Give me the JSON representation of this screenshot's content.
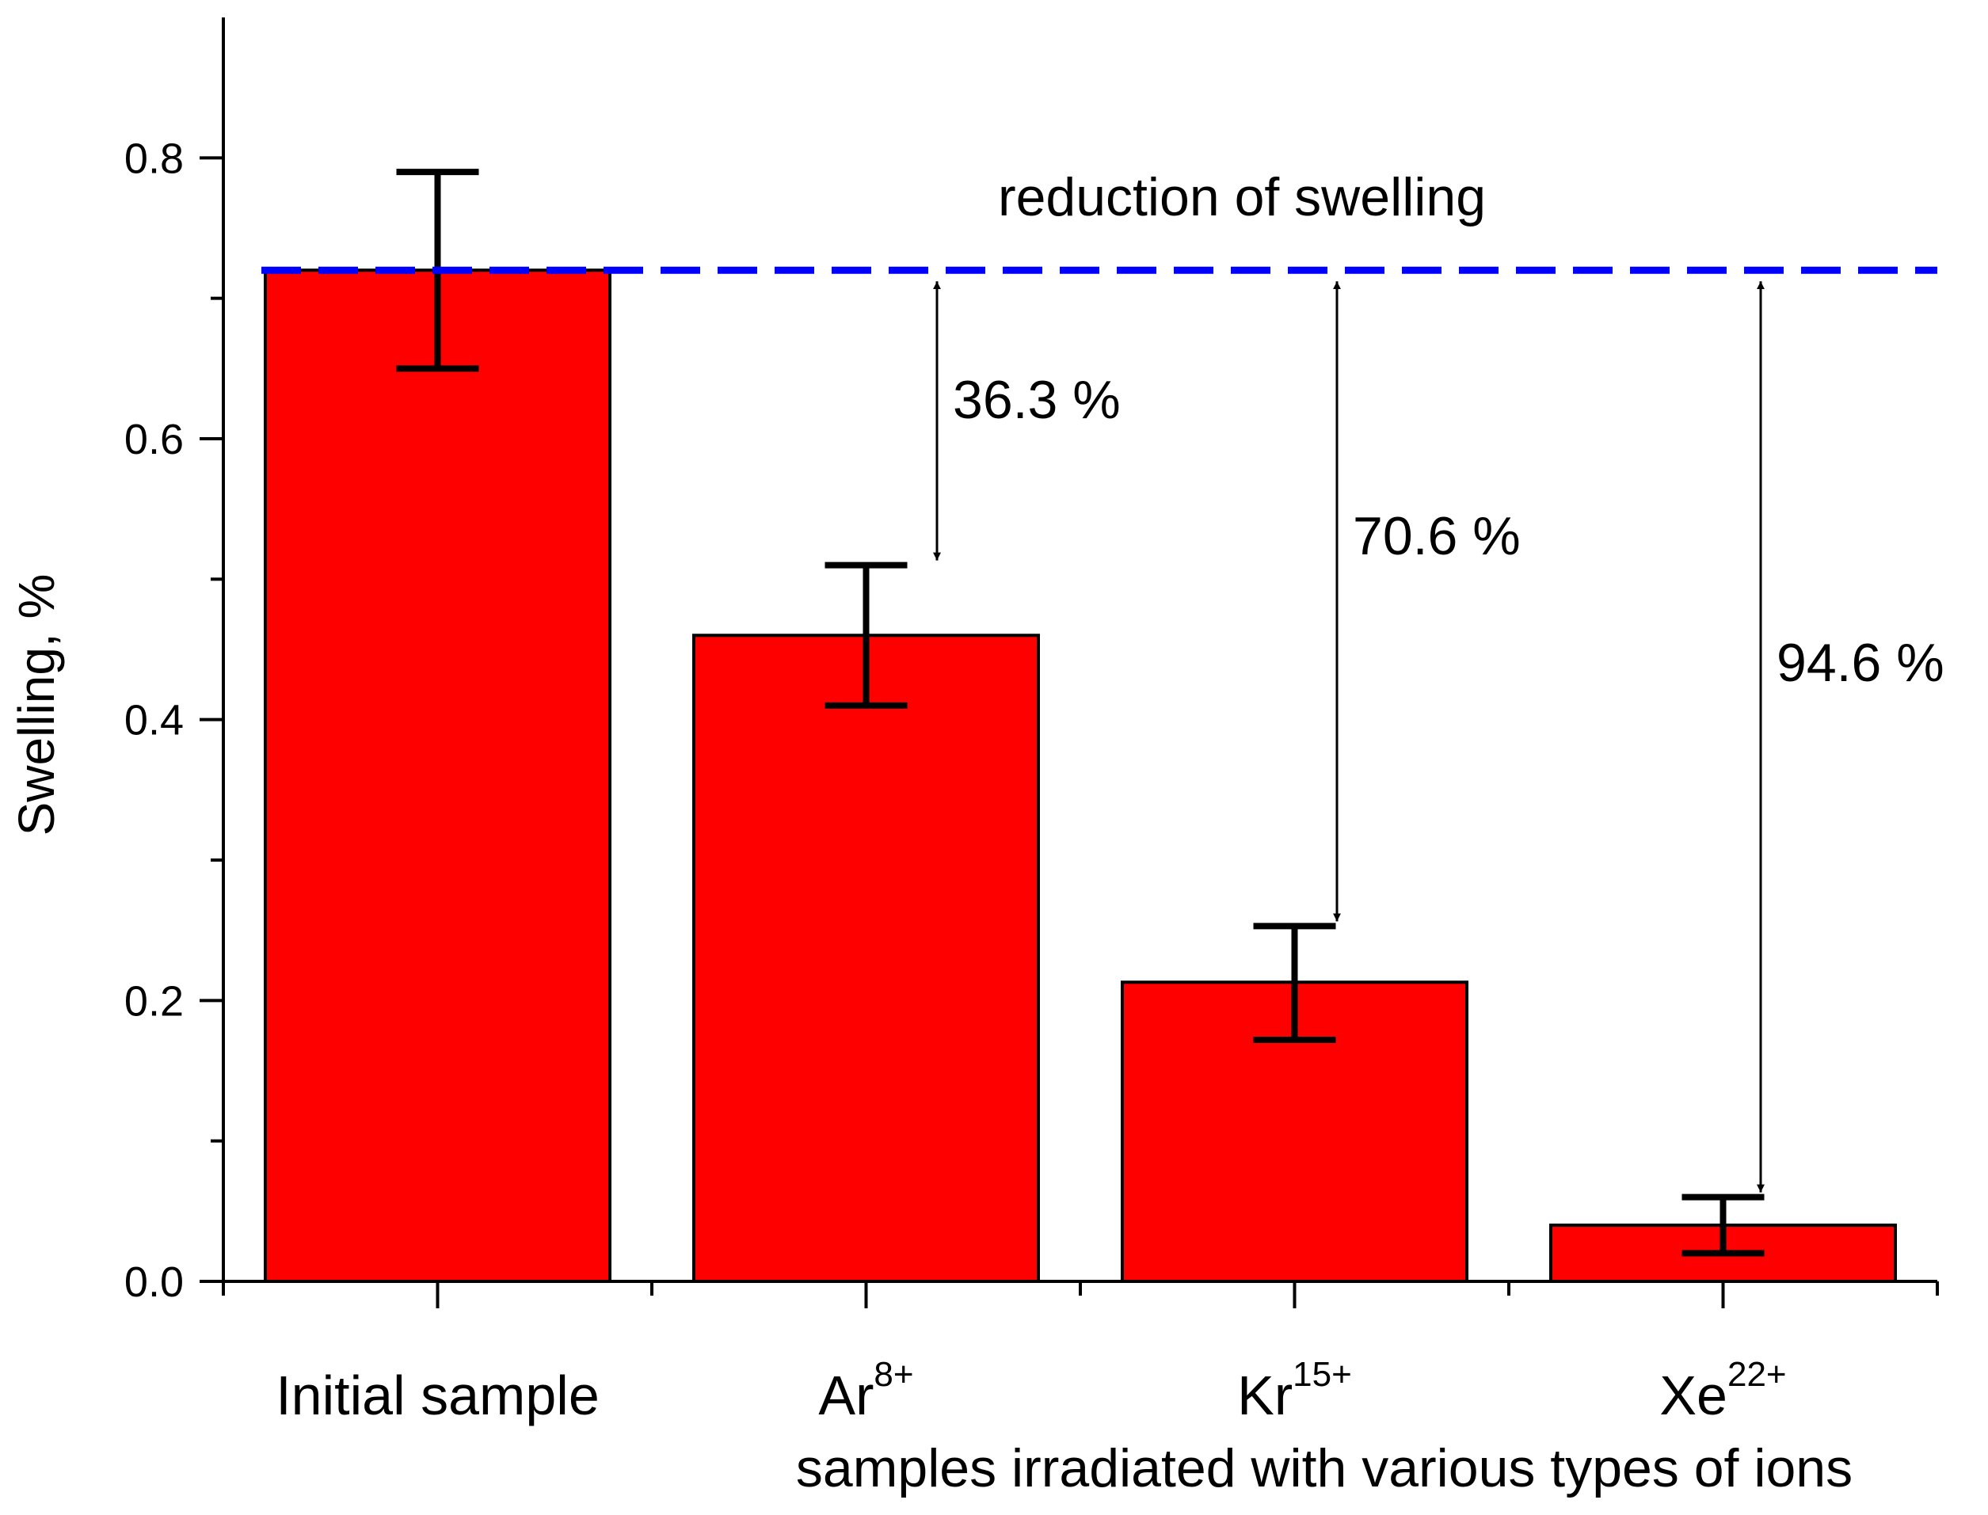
{
  "colors": {
    "bar_fill": "#ff0000",
    "bar_stroke": "#000000",
    "reference_line": "#0000ff",
    "axis": "#000000"
  },
  "chart_data": {
    "type": "bar",
    "ylabel": "Swelling, %",
    "xlabel": "samples irradiated with various types of ions",
    "ylim": [
      0,
      0.9
    ],
    "yticks": [
      {
        "value": 0.0,
        "label": "0.0"
      },
      {
        "value": 0.2,
        "label": "0.2"
      },
      {
        "value": 0.4,
        "label": "0.4"
      },
      {
        "value": 0.6,
        "label": "0.6"
      },
      {
        "value": 0.8,
        "label": "0.8"
      }
    ],
    "yminor_ticks": [
      0.1,
      0.3,
      0.5,
      0.7
    ],
    "categories": [
      {
        "base": "Initial sample",
        "sup": ""
      },
      {
        "base": "Ar",
        "sup": "8+"
      },
      {
        "base": "Kr",
        "sup": "15+"
      },
      {
        "base": "Xe",
        "sup": "22+"
      }
    ],
    "values": [
      0.72,
      0.46,
      0.213,
      0.04
    ],
    "error_low": [
      0.65,
      0.41,
      0.172,
      0.02
    ],
    "error_high": [
      0.79,
      0.51,
      0.253,
      0.06
    ],
    "reference_line": {
      "value": 0.72,
      "style": "dashed",
      "color": "#0000ff"
    },
    "reference_label": "reduction of swelling",
    "annotations": [
      {
        "label": "36.3 %",
        "target_index": 1
      },
      {
        "label": "70.6 %",
        "target_index": 2
      },
      {
        "label": "94.6 %",
        "target_index": 3
      }
    ]
  }
}
